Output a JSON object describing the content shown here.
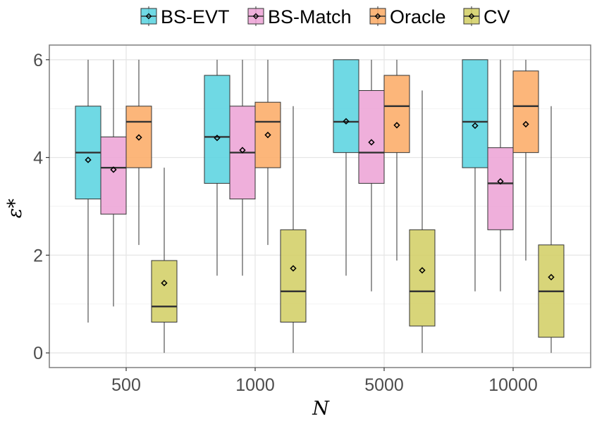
{
  "chart_data": {
    "type": "boxplot",
    "categories": [
      "500",
      "1000",
      "5000",
      "10000"
    ],
    "xlabel": "N",
    "ylabel": "ε*",
    "ylim": [
      -0.3,
      6.3
    ],
    "yticks": [
      0,
      2,
      4,
      6
    ],
    "grid": true,
    "legend_position": "top",
    "series": [
      {
        "name": "BS-EVT",
        "color": "#5bd4e0",
        "boxes": [
          {
            "min": 0.62,
            "q1": 3.15,
            "median": 4.1,
            "q3": 5.05,
            "max": 6.0,
            "mean": 3.95
          },
          {
            "min": 1.58,
            "q1": 3.47,
            "median": 4.42,
            "q3": 5.68,
            "max": 6.0,
            "mean": 4.4
          },
          {
            "min": 1.58,
            "q1": 4.1,
            "median": 4.73,
            "q3": 6.0,
            "max": 6.0,
            "mean": 4.74
          },
          {
            "min": 1.26,
            "q1": 3.79,
            "median": 4.73,
            "q3": 6.0,
            "max": 6.0,
            "mean": 4.65
          }
        ]
      },
      {
        "name": "BS-Match",
        "color": "#eda4d6",
        "boxes": [
          {
            "min": 0.95,
            "q1": 2.84,
            "median": 3.79,
            "q3": 4.42,
            "max": 6.0,
            "mean": 3.75
          },
          {
            "min": 1.58,
            "q1": 3.15,
            "median": 4.1,
            "q3": 5.05,
            "max": 6.0,
            "mean": 4.15
          },
          {
            "min": 1.26,
            "q1": 3.47,
            "median": 4.1,
            "q3": 5.37,
            "max": 6.0,
            "mean": 4.31
          },
          {
            "min": 1.26,
            "q1": 2.52,
            "median": 3.47,
            "q3": 4.2,
            "max": 6.0,
            "mean": 3.51
          }
        ]
      },
      {
        "name": "Oracle",
        "color": "#fcac68",
        "boxes": [
          {
            "min": 2.21,
            "q1": 3.79,
            "median": 4.73,
            "q3": 5.05,
            "max": 6.0,
            "mean": 4.41
          },
          {
            "min": 2.21,
            "q1": 3.79,
            "median": 4.73,
            "q3": 5.13,
            "max": 6.0,
            "mean": 4.46
          },
          {
            "min": 1.89,
            "q1": 4.1,
            "median": 5.05,
            "q3": 5.68,
            "max": 6.0,
            "mean": 4.66
          },
          {
            "min": 1.89,
            "q1": 4.1,
            "median": 5.05,
            "q3": 5.77,
            "max": 6.0,
            "mean": 4.68
          }
        ]
      },
      {
        "name": "CV",
        "color": "#d3cf67",
        "boxes": [
          {
            "min": 0.0,
            "q1": 0.63,
            "median": 0.95,
            "q3": 1.89,
            "max": 3.79,
            "mean": 1.43
          },
          {
            "min": 0.0,
            "q1": 0.63,
            "median": 1.26,
            "q3": 2.52,
            "max": 5.05,
            "mean": 1.73
          },
          {
            "min": 0.0,
            "q1": 0.55,
            "median": 1.26,
            "q3": 2.52,
            "max": 5.37,
            "mean": 1.69
          },
          {
            "min": 0.0,
            "q1": 0.32,
            "median": 1.26,
            "q3": 2.21,
            "max": 5.05,
            "mean": 1.55
          }
        ]
      }
    ]
  }
}
